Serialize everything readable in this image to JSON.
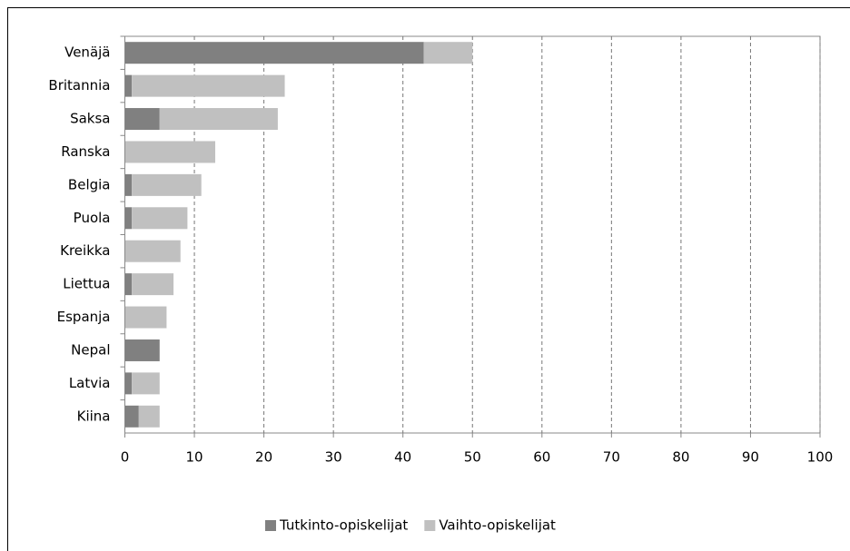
{
  "chart_data": {
    "type": "bar",
    "orientation": "horizontal",
    "stacked": true,
    "categories": [
      "Venäjä",
      "Britannia",
      "Saksa",
      "Ranska",
      "Belgia",
      "Puola",
      "Kreikka",
      "Liettua",
      "Espanja",
      "Nepal",
      "Latvia",
      "Kiina"
    ],
    "series": [
      {
        "name": "Tutkinto-opiskelijat",
        "color": "#808080",
        "values": [
          43,
          1,
          5,
          0,
          1,
          1,
          0,
          1,
          0,
          5,
          1,
          2
        ]
      },
      {
        "name": "Vaihto-opiskelijat",
        "color": "#c0c0c0",
        "values": [
          7,
          22,
          17,
          13,
          10,
          8,
          8,
          6,
          6,
          0,
          4,
          3
        ]
      }
    ],
    "xlim": [
      0,
      100
    ],
    "xticks": [
      0,
      10,
      20,
      30,
      40,
      50,
      60,
      70,
      80,
      90,
      100
    ],
    "grid": true,
    "legend": "bottom"
  }
}
